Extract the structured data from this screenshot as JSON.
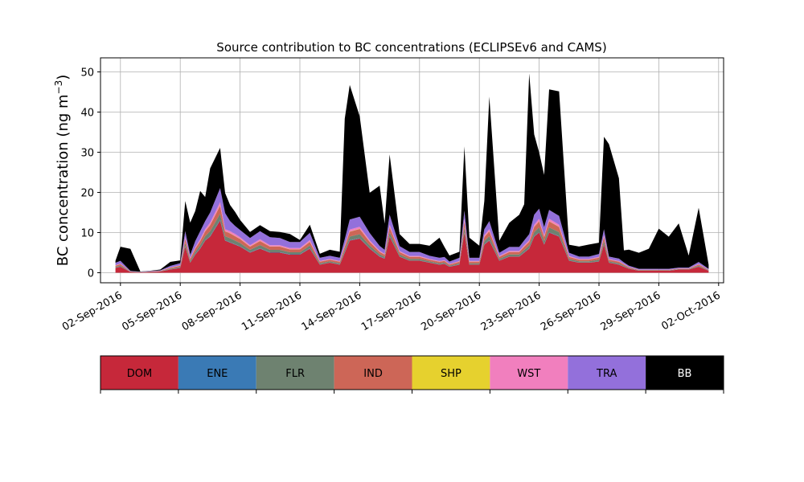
{
  "chart_data": {
    "type": "area",
    "stacked": true,
    "title": "Source contribution to BC concentrations (ECLIPSEv6 and CAMS)",
    "ylabel_main": "BC concentration (ng m",
    "ylabel_sup": "−3",
    "ylabel_close": ")",
    "xlabel": "",
    "grid": true,
    "xlim": [
      "2016-09-01T00:00",
      "2016-10-02T06:00"
    ],
    "ylim": [
      -2.5,
      53.5
    ],
    "yticks": [
      0,
      10,
      20,
      30,
      40,
      50
    ],
    "xticks": [
      {
        "date": "2016-09-02",
        "label": "02-Sep-2016"
      },
      {
        "date": "2016-09-05",
        "label": "05-Sep-2016"
      },
      {
        "date": "2016-09-08",
        "label": "08-Sep-2016"
      },
      {
        "date": "2016-09-11",
        "label": "11-Sep-2016"
      },
      {
        "date": "2016-09-14",
        "label": "14-Sep-2016"
      },
      {
        "date": "2016-09-17",
        "label": "17-Sep-2016"
      },
      {
        "date": "2016-09-20",
        "label": "20-Sep-2016"
      },
      {
        "date": "2016-09-23",
        "label": "23-Sep-2016"
      },
      {
        "date": "2016-09-26",
        "label": "26-Sep-2016"
      },
      {
        "date": "2016-09-29",
        "label": "29-Sep-2016"
      },
      {
        "date": "2016-10-02",
        "label": "02-Oct-2016"
      }
    ],
    "legend": {
      "placement": "bottom",
      "entries": [
        {
          "label": "DOM",
          "color": "#c6283a",
          "text_color": "#000000"
        },
        {
          "label": "ENE",
          "color": "#3a7ab5",
          "text_color": "#000000"
        },
        {
          "label": "FLR",
          "color": "#6e8270",
          "text_color": "#000000"
        },
        {
          "label": "IND",
          "color": "#cd6657",
          "text_color": "#000000"
        },
        {
          "label": "SHP",
          "color": "#e6d12e",
          "text_color": "#000000"
        },
        {
          "label": "WST",
          "color": "#f17fbe",
          "text_color": "#000000"
        },
        {
          "label": "TRA",
          "color": "#9370db",
          "text_color": "#000000"
        },
        {
          "label": "BB",
          "color": "#000000",
          "text_color": "#ffffff"
        }
      ]
    },
    "x": [
      "2016-09-01T18:00",
      "2016-09-02T00:00",
      "2016-09-02T12:00",
      "2016-09-03T00:00",
      "2016-09-03T12:00",
      "2016-09-04T00:00",
      "2016-09-04T12:00",
      "2016-09-05T00:00",
      "2016-09-05T06:00",
      "2016-09-05T12:00",
      "2016-09-05T18:00",
      "2016-09-06T00:00",
      "2016-09-06T06:00",
      "2016-09-06T12:00",
      "2016-09-07T00:00",
      "2016-09-07T06:00",
      "2016-09-07T12:00",
      "2016-09-07T18:00",
      "2016-09-08T00:00",
      "2016-09-08T12:00",
      "2016-09-09T00:00",
      "2016-09-09T12:00",
      "2016-09-10T00:00",
      "2016-09-10T12:00",
      "2016-09-11T00:00",
      "2016-09-11T12:00",
      "2016-09-12T00:00",
      "2016-09-12T12:00",
      "2016-09-13T00:00",
      "2016-09-13T06:00",
      "2016-09-13T12:00",
      "2016-09-14T00:00",
      "2016-09-14T12:00",
      "2016-09-15T00:00",
      "2016-09-15T06:00",
      "2016-09-15T12:00",
      "2016-09-16T00:00",
      "2016-09-16T12:00",
      "2016-09-17T00:00",
      "2016-09-17T12:00",
      "2016-09-18T00:00",
      "2016-09-18T06:00",
      "2016-09-18T12:00",
      "2016-09-19T00:00",
      "2016-09-19T06:00",
      "2016-09-19T12:00",
      "2016-09-20T00:00",
      "2016-09-20T06:00",
      "2016-09-20T12:00",
      "2016-09-21T00:00",
      "2016-09-21T12:00",
      "2016-09-22T00:00",
      "2016-09-22T06:00",
      "2016-09-22T12:00",
      "2016-09-22T18:00",
      "2016-09-23T00:00",
      "2016-09-23T06:00",
      "2016-09-23T12:00",
      "2016-09-24T00:00",
      "2016-09-24T12:00",
      "2016-09-25T00:00",
      "2016-09-25T12:00",
      "2016-09-26T00:00",
      "2016-09-26T06:00",
      "2016-09-26T12:00",
      "2016-09-27T00:00",
      "2016-09-27T06:00",
      "2016-09-27T12:00",
      "2016-09-28T00:00",
      "2016-09-28T12:00",
      "2016-09-29T00:00",
      "2016-09-29T12:00",
      "2016-09-30T00:00",
      "2016-09-30T12:00",
      "2016-10-01T00:00",
      "2016-10-01T12:00"
    ],
    "series": [
      {
        "name": "DOM",
        "color": "#c6283a",
        "values": [
          1.2,
          1.5,
          0.2,
          0.1,
          0.2,
          0.3,
          0.8,
          1.2,
          6.5,
          2.5,
          4.5,
          6,
          8,
          9,
          13,
          8,
          7.5,
          7,
          6.5,
          5,
          6,
          5,
          5,
          4.5,
          4.5,
          6,
          2,
          2.5,
          2,
          5,
          8,
          8.5,
          6,
          4,
          3.5,
          9,
          4,
          3,
          3,
          2.5,
          2,
          2.2,
          1.5,
          2,
          10,
          2,
          2,
          7,
          8,
          3,
          4,
          4,
          5,
          6,
          9,
          10,
          7,
          10,
          9,
          3,
          2.5,
          2.5,
          2.8,
          7,
          2.5,
          2,
          1.5,
          1,
          0.5,
          0.5,
          0.5,
          0.5,
          0.8,
          0.8,
          1.5,
          0.5
        ]
      },
      {
        "name": "ENE",
        "color": "#3a7ab5",
        "values": [
          0.05,
          0.05,
          0.02,
          0.02,
          0.02,
          0.02,
          0.05,
          0.05,
          0.1,
          0.05,
          0.1,
          0.1,
          0.1,
          0.15,
          0.2,
          0.1,
          0.1,
          0.1,
          0.1,
          0.1,
          0.1,
          0.1,
          0.1,
          0.1,
          0.1,
          0.1,
          0.05,
          0.05,
          0.05,
          0.1,
          0.1,
          0.1,
          0.1,
          0.1,
          0.1,
          0.1,
          0.05,
          0.05,
          0.05,
          0.05,
          0.05,
          0.05,
          0.05,
          0.05,
          0.1,
          0.05,
          0.05,
          0.1,
          0.1,
          0.05,
          0.05,
          0.05,
          0.1,
          0.1,
          0.1,
          0.1,
          0.1,
          0.1,
          0.1,
          0.05,
          0.05,
          0.05,
          0.05,
          0.1,
          0.05,
          0.05,
          0.05,
          0.02,
          0.02,
          0.02,
          0.02,
          0.02,
          0.02,
          0.02,
          0.05,
          0.02
        ]
      },
      {
        "name": "FLR",
        "color": "#6e8270",
        "values": [
          0.2,
          0.25,
          0.05,
          0.02,
          0.05,
          0.05,
          0.15,
          0.2,
          0.8,
          0.4,
          0.6,
          0.8,
          1,
          1.2,
          1.5,
          1,
          1,
          0.9,
          0.8,
          0.6,
          0.8,
          0.6,
          0.6,
          0.5,
          0.5,
          0.7,
          0.3,
          0.3,
          0.3,
          0.6,
          0.9,
          1,
          0.7,
          0.5,
          0.4,
          1,
          0.5,
          0.4,
          0.4,
          0.3,
          0.3,
          0.3,
          0.2,
          0.3,
          1.2,
          0.3,
          0.3,
          0.8,
          1,
          0.4,
          0.5,
          0.5,
          0.6,
          0.7,
          1,
          1.2,
          0.8,
          1.2,
          1,
          0.4,
          0.3,
          0.3,
          0.4,
          0.8,
          0.3,
          0.3,
          0.2,
          0.15,
          0.1,
          0.1,
          0.1,
          0.1,
          0.1,
          0.1,
          0.2,
          0.1
        ]
      },
      {
        "name": "IND",
        "color": "#cd6657",
        "values": [
          0.3,
          0.35,
          0.05,
          0.03,
          0.05,
          0.08,
          0.2,
          0.3,
          1,
          0.5,
          0.8,
          1,
          1.2,
          1.5,
          2,
          1.2,
          1.2,
          1.1,
          1,
          0.8,
          1,
          0.8,
          0.8,
          0.7,
          0.7,
          0.9,
          0.4,
          0.4,
          0.4,
          0.8,
          1.2,
          1.3,
          0.9,
          0.6,
          0.5,
          1.3,
          0.6,
          0.5,
          0.5,
          0.4,
          0.4,
          0.4,
          0.3,
          0.4,
          1.5,
          0.4,
          0.4,
          1,
          1.2,
          0.5,
          0.6,
          0.6,
          0.8,
          0.9,
          1.3,
          1.5,
          1,
          1.5,
          1.3,
          0.5,
          0.4,
          0.4,
          0.5,
          1,
          0.4,
          0.4,
          0.3,
          0.2,
          0.1,
          0.1,
          0.1,
          0.1,
          0.1,
          0.1,
          0.3,
          0.1
        ]
      },
      {
        "name": "SHP",
        "color": "#e6d12e",
        "values": [
          0.02,
          0.02,
          0.01,
          0.01,
          0.01,
          0.01,
          0.02,
          0.02,
          0.05,
          0.03,
          0.04,
          0.05,
          0.05,
          0.06,
          0.08,
          0.05,
          0.05,
          0.05,
          0.05,
          0.04,
          0.05,
          0.04,
          0.04,
          0.04,
          0.04,
          0.05,
          0.02,
          0.02,
          0.02,
          0.04,
          0.05,
          0.05,
          0.04,
          0.03,
          0.03,
          0.05,
          0.03,
          0.03,
          0.03,
          0.02,
          0.02,
          0.02,
          0.02,
          0.02,
          0.06,
          0.02,
          0.02,
          0.05,
          0.05,
          0.03,
          0.03,
          0.03,
          0.04,
          0.04,
          0.05,
          0.06,
          0.05,
          0.06,
          0.05,
          0.03,
          0.02,
          0.02,
          0.03,
          0.05,
          0.02,
          0.02,
          0.02,
          0.01,
          0.01,
          0.01,
          0.01,
          0.01,
          0.01,
          0.01,
          0.02,
          0.01
        ]
      },
      {
        "name": "WST",
        "color": "#f17fbe",
        "values": [
          0.1,
          0.1,
          0.02,
          0.02,
          0.02,
          0.03,
          0.08,
          0.1,
          0.4,
          0.2,
          0.3,
          0.4,
          0.5,
          0.6,
          0.8,
          0.5,
          0.5,
          0.5,
          0.4,
          0.3,
          0.4,
          0.3,
          0.3,
          0.3,
          0.3,
          0.4,
          0.15,
          0.15,
          0.15,
          0.3,
          0.5,
          0.5,
          0.35,
          0.25,
          0.2,
          0.5,
          0.25,
          0.2,
          0.2,
          0.15,
          0.15,
          0.15,
          0.1,
          0.15,
          0.6,
          0.15,
          0.15,
          0.4,
          0.5,
          0.2,
          0.25,
          0.25,
          0.3,
          0.35,
          0.5,
          0.6,
          0.4,
          0.6,
          0.5,
          0.2,
          0.15,
          0.15,
          0.2,
          0.4,
          0.15,
          0.15,
          0.1,
          0.08,
          0.05,
          0.05,
          0.05,
          0.05,
          0.05,
          0.05,
          0.1,
          0.05
        ]
      },
      {
        "name": "TRA",
        "color": "#9370db",
        "values": [
          0.6,
          0.7,
          0.1,
          0.05,
          0.1,
          0.1,
          0.4,
          0.5,
          1.5,
          0.8,
          1.5,
          2,
          2,
          2.5,
          3.5,
          4,
          2.5,
          2,
          1.8,
          1.8,
          2,
          2,
          1.8,
          1.5,
          1.5,
          1.8,
          0.8,
          0.8,
          0.8,
          1.5,
          2.5,
          2.5,
          1.8,
          1.2,
          1,
          2.5,
          1.2,
          1,
          1,
          0.8,
          0.8,
          0.8,
          0.6,
          0.8,
          2,
          0.8,
          0.8,
          1.5,
          2,
          0.8,
          1,
          1,
          1.2,
          1.5,
          2.5,
          2.5,
          2,
          2.2,
          2.2,
          0.8,
          0.6,
          0.6,
          0.7,
          1.5,
          0.6,
          0.6,
          0.4,
          0.3,
          0.2,
          0.2,
          0.2,
          0.2,
          0.2,
          0.2,
          0.5,
          0.2
        ]
      },
      {
        "name": "BB",
        "color": "#000000",
        "values": [
          0.5,
          3.5,
          5.5,
          0.05,
          0.05,
          0.2,
          1,
          0.7,
          7.5,
          8,
          7.5,
          10,
          6,
          11,
          10,
          5,
          4,
          3.5,
          2.5,
          1.5,
          1.5,
          1.5,
          1.5,
          2,
          0.5,
          2,
          1,
          1.5,
          1.5,
          30,
          33.5,
          25,
          10,
          15,
          6.5,
          15,
          3,
          2,
          2,
          2.5,
          5,
          2.5,
          1.5,
          1.5,
          16,
          5,
          3,
          7,
          31,
          3,
          6,
          8,
          9,
          40,
          20,
          14,
          13,
          30,
          31,
          2,
          2.5,
          3,
          2.8,
          23,
          28,
          20,
          3,
          4,
          4,
          5,
          10,
          8,
          11,
          3,
          13.5,
          1
        ]
      }
    ]
  }
}
